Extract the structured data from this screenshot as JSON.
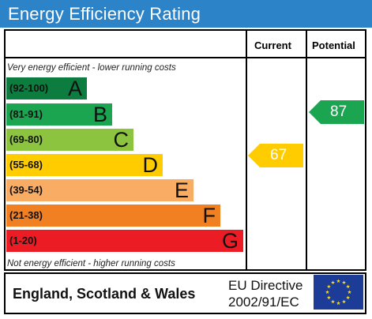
{
  "header": {
    "title": "Energy Efficiency Rating"
  },
  "columns": {
    "current": "Current",
    "potential": "Potential"
  },
  "notes": {
    "top": "Very energy efficient - lower running costs",
    "bottom": "Not energy efficient - higher running costs"
  },
  "bands": [
    {
      "range": "(92-100)",
      "letter": "A",
      "color": "#0d7d3f"
    },
    {
      "range": "(81-91)",
      "letter": "B",
      "color": "#1ba550"
    },
    {
      "range": "(69-80)",
      "letter": "C",
      "color": "#8cc43f"
    },
    {
      "range": "(55-68)",
      "letter": "D",
      "color": "#ffcc00"
    },
    {
      "range": "(39-54)",
      "letter": "E",
      "color": "#f9ac64"
    },
    {
      "range": "(21-38)",
      "letter": "F",
      "color": "#f08021"
    },
    {
      "range": "(1-20)",
      "letter": "G",
      "color": "#ec1c24"
    }
  ],
  "ratings": {
    "current": {
      "value": "67",
      "band": "D",
      "color": "#ffcc00"
    },
    "potential": {
      "value": "87",
      "band": "B",
      "color": "#1ba550"
    }
  },
  "footer": {
    "region": "England, Scotland & Wales",
    "directive_line1": "EU Directive",
    "directive_line2": "2002/91/EC",
    "flag_icon": "eu-flag-icon"
  }
}
